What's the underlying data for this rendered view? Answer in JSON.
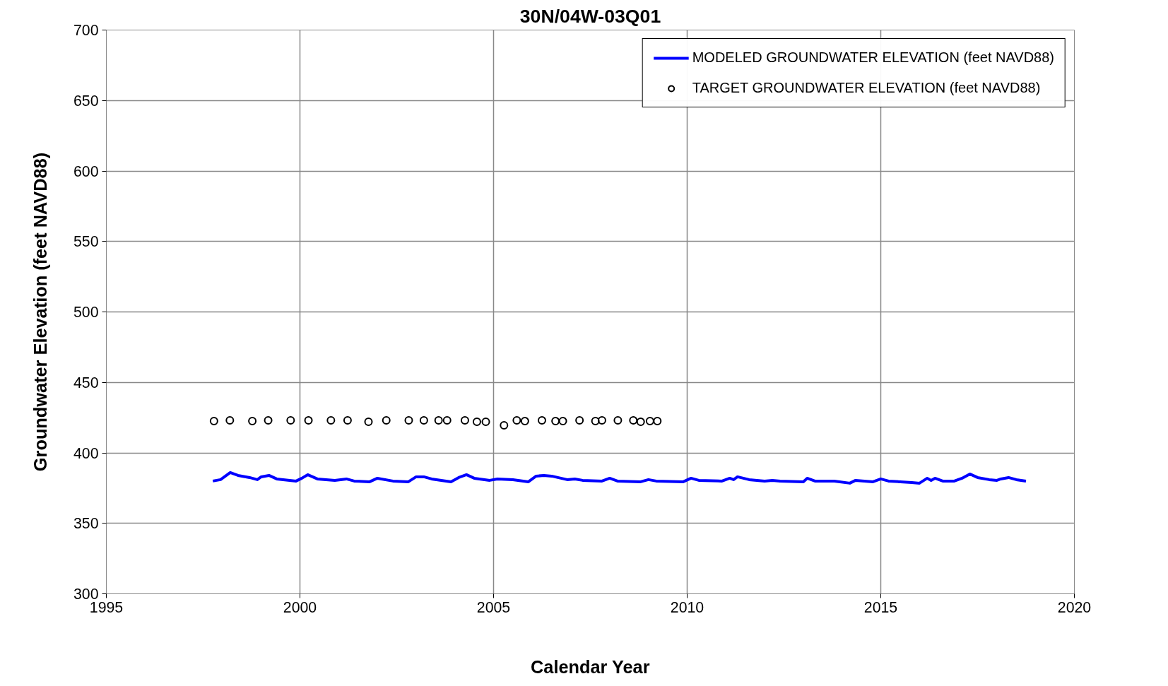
{
  "chart_data": {
    "type": "line",
    "title": "30N/04W-03Q01",
    "xlabel": "Calendar Year",
    "ylabel": "Groundwater Elevation (feet NAVD88)",
    "xlim": [
      1995,
      2020
    ],
    "xticks": [
      1995,
      2000,
      2005,
      2010,
      2015,
      2020
    ],
    "ylim": [
      300,
      700
    ],
    "yticks": [
      300,
      350,
      400,
      450,
      500,
      550,
      600,
      650,
      700
    ],
    "grid": true,
    "legend": "top right",
    "series": [
      {
        "name": "MODELED GROUNDWATER ELEVATION (feet NAVD88)",
        "marker": "none",
        "line_style": "solid",
        "color": "#0000ff",
        "x": [
          1997.75,
          1997.95,
          1998.1,
          1998.2,
          1998.4,
          1998.7,
          1998.9,
          1999.0,
          1999.2,
          1999.4,
          1999.9,
          2000.05,
          2000.2,
          2000.45,
          2000.9,
          2001.2,
          2001.4,
          2001.8,
          2002.0,
          2002.4,
          2002.8,
          2003.0,
          2003.2,
          2003.4,
          2003.9,
          2004.1,
          2004.3,
          2004.5,
          2004.9,
          2005.1,
          2005.5,
          2005.9,
          2006.1,
          2006.3,
          2006.5,
          2006.9,
          2007.1,
          2007.3,
          2007.8,
          2008.0,
          2008.2,
          2008.8,
          2009.0,
          2009.2,
          2009.9,
          2010.1,
          2010.3,
          2010.9,
          2011.1,
          2011.2,
          2011.3,
          2011.6,
          2012.0,
          2012.2,
          2012.4,
          2013.0,
          2013.1,
          2013.3,
          2013.8,
          2014.2,
          2014.35,
          2014.8,
          2015.0,
          2015.2,
          2015.8,
          2016.0,
          2016.2,
          2016.3,
          2016.4,
          2016.6,
          2016.9,
          2017.1,
          2017.3,
          2017.5,
          2017.8,
          2018.0,
          2018.1,
          2018.3,
          2018.5,
          2018.75
        ],
        "values": [
          380,
          381,
          384,
          386,
          384,
          382.5,
          381,
          383,
          384,
          381.5,
          380,
          382,
          384.5,
          381.5,
          380.5,
          381.5,
          380,
          379.5,
          382,
          380,
          379.5,
          383,
          383,
          381.5,
          379.5,
          382.5,
          384.5,
          382,
          380.5,
          381.5,
          381,
          379.5,
          383.5,
          384,
          383.5,
          381,
          381.5,
          380.5,
          380,
          382,
          380,
          379.5,
          381,
          380,
          379.5,
          382,
          380.5,
          380,
          382,
          381,
          383,
          381,
          380,
          380.5,
          380,
          379.5,
          382,
          380,
          380,
          378.5,
          380.5,
          379.5,
          381.5,
          380,
          379,
          378.5,
          382,
          380.5,
          382,
          380,
          380,
          382,
          385,
          382.5,
          381,
          380.5,
          381.5,
          382.5,
          381,
          380
        ]
      },
      {
        "name": "TARGET GROUNDWATER ELEVATION (feet NAVD88)",
        "type": "scatter",
        "marker": "circle",
        "color": "#000000",
        "x": [
          1997.78,
          1998.19,
          1998.77,
          1999.18,
          1999.76,
          2000.22,
          2000.8,
          2001.23,
          2001.77,
          2002.23,
          2002.81,
          2003.2,
          2003.58,
          2003.8,
          2004.26,
          2004.57,
          2004.8,
          2005.27,
          2005.6,
          2005.81,
          2006.25,
          2006.6,
          2006.79,
          2007.22,
          2007.63,
          2007.8,
          2008.21,
          2008.61,
          2008.8,
          2009.04,
          2009.23
        ],
        "values": [
          422.5,
          423,
          422.5,
          423,
          423,
          423,
          423,
          423,
          422,
          423,
          423,
          423,
          423,
          423,
          423,
          422,
          422,
          419.5,
          423,
          422.5,
          423,
          422.5,
          422.5,
          423,
          422.5,
          423,
          423,
          423,
          422,
          422.5,
          422.5
        ]
      }
    ]
  }
}
